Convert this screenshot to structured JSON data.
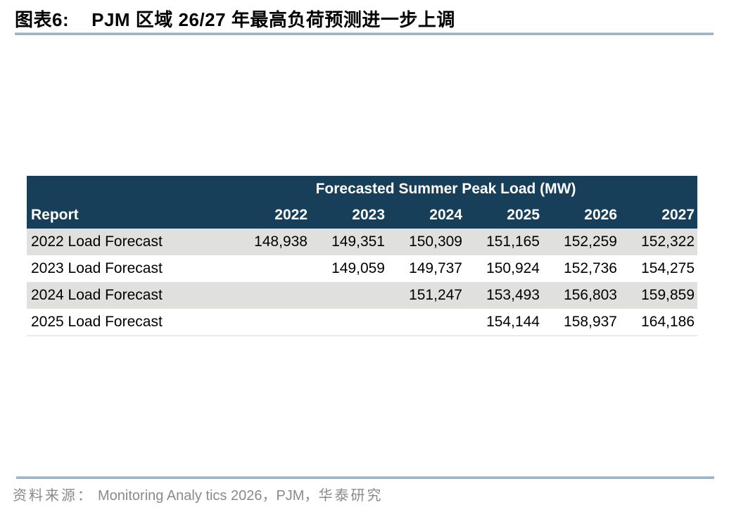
{
  "figure": {
    "label": "图表6:",
    "title": "PJM 区域 26/27 年最高负荷预测进一步上调"
  },
  "chart_data": {
    "type": "table",
    "title": "Forecasted Summer Peak Load (MW)",
    "row_header": "Report",
    "columns": [
      "2022",
      "2023",
      "2024",
      "2025",
      "2026",
      "2027"
    ],
    "rows": [
      {
        "label": "2022 Load Forecast",
        "values": [
          "148,938",
          "149,351",
          "150,309",
          "151,165",
          "152,259",
          "152,322"
        ]
      },
      {
        "label": "2023 Load Forecast",
        "values": [
          "",
          "149,059",
          "149,737",
          "150,924",
          "152,736",
          "154,275"
        ]
      },
      {
        "label": "2024 Load Forecast",
        "values": [
          "",
          "",
          "151,247",
          "153,493",
          "156,803",
          "159,859"
        ]
      },
      {
        "label": "2025 Load Forecast",
        "values": [
          "",
          "",
          "",
          "154,144",
          "158,937",
          "164,186"
        ]
      }
    ]
  },
  "source": {
    "label": "资料来源：",
    "body": "Monitoring Analy tics 2026，PJM，",
    "org": "华泰研究"
  },
  "colors": {
    "header_bg": "#173f5a",
    "stripe_bg": "#e0e0de",
    "accent_line": "#9db3c8",
    "source_text": "#8a8a8a"
  }
}
